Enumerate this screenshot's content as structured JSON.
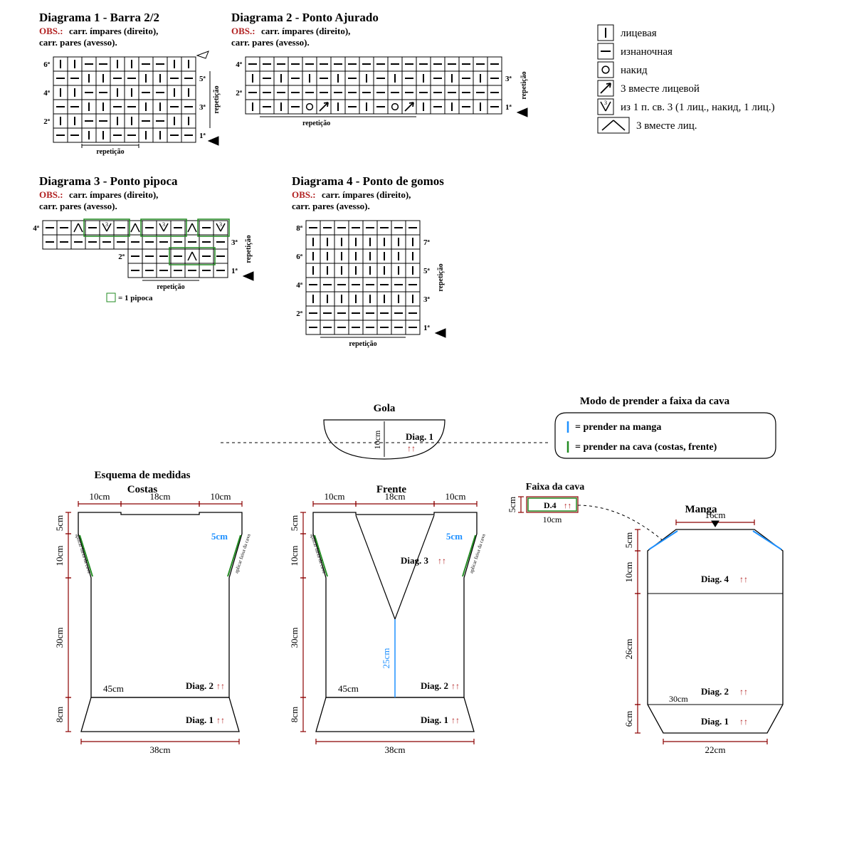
{
  "colors": {
    "black": "#000000",
    "red": "#b22222",
    "blue": "#1e90ff",
    "green": "#228b22",
    "darkred_measure": "#8b0000",
    "grid_stroke": "#000000",
    "bg": "#ffffff"
  },
  "fonts": {
    "title_size": 17,
    "obs_size": 13,
    "legend_size": 15,
    "measure_size": 14,
    "small_size": 11,
    "rep_size": 10
  },
  "diagram1": {
    "title": "Diagrama 1 - Barra 2/2",
    "obs_label": "OBS.:",
    "obs_text": "carr. ímpares (direito),",
    "obs_text2": "carr. pares (avesso).",
    "repeticao": "repetição",
    "cols": 10,
    "rows": 6,
    "row_labels_left": [
      "6ª",
      "4ª",
      "2ª"
    ],
    "row_labels_right": [
      "5ª",
      "3ª",
      "1ª"
    ],
    "cell": 20,
    "patternA": [
      "|",
      "|",
      "-",
      "-",
      "|",
      "|",
      "-",
      "-",
      "|",
      "|"
    ],
    "patternB": [
      "-",
      "-",
      "|",
      "|",
      "-",
      "-",
      "|",
      "|",
      "-",
      "-"
    ]
  },
  "diagram2": {
    "title": "Diagrama 2 - Ponto Ajurado",
    "obs_label": "OBS.:",
    "obs_text": "carr. ímpares (direito),",
    "obs_text2": "carr. pares (avesso).",
    "repeticao": "repetição",
    "cols": 18,
    "rows": 4,
    "row_labels_left": [
      "4ª",
      "2ª"
    ],
    "row_labels_right": [
      "3ª",
      "1ª"
    ],
    "cell": 20,
    "rows_data": [
      [
        "-",
        "-",
        "-",
        "-",
        "-",
        "-",
        "-",
        "-",
        "-",
        "-",
        "-",
        "-",
        "-",
        "-",
        "-",
        "-",
        "-",
        "-"
      ],
      [
        "|",
        "-",
        "|",
        "-",
        "|",
        "-",
        "|",
        "-",
        "|",
        "-",
        "|",
        "-",
        "|",
        "-",
        "|",
        "-",
        "|",
        "-"
      ],
      [
        "-",
        "-",
        "-",
        "-",
        "-",
        "-",
        "-",
        "-",
        "-",
        "-",
        "-",
        "-",
        "-",
        "-",
        "-",
        "-",
        "-",
        "-"
      ],
      [
        "|",
        "-",
        "|",
        "-",
        "o",
        "↗",
        "|",
        "-",
        "|",
        "-",
        "o",
        "↗",
        "|",
        "-",
        "|",
        "-",
        "|",
        "-"
      ]
    ]
  },
  "diagram3": {
    "title": "Diagrama 3 - Ponto pipoca",
    "obs_label": "OBS.:",
    "obs_text": "carr. ímpares (direito),",
    "obs_text2": "carr. pares (avesso).",
    "repeticao": "repetição",
    "pip_label": "= 1 pipoca",
    "row_labels_left": [
      "4ª",
      "2ª"
    ],
    "row_labels_right": [
      "3ª",
      "1ª"
    ],
    "cell": 20,
    "row4": [
      "-",
      "-",
      "A",
      "-",
      "V",
      "-",
      "A",
      "-",
      "V",
      "-",
      "A",
      "-",
      "V"
    ],
    "row3": [
      "-",
      "-",
      "-",
      "-",
      "-",
      "-",
      "-",
      "-",
      "-",
      "-",
      "-",
      "-",
      "-"
    ],
    "row2": [
      "-",
      "-",
      "-",
      "-",
      "A",
      "-",
      "-"
    ],
    "row1": [
      "-",
      "-",
      "-",
      "-",
      "-",
      "-",
      "-"
    ]
  },
  "diagram4": {
    "title": "Diagrama 4 - Ponto de gomos",
    "obs_label": "OBS.:",
    "obs_text": "carr. ímpares (direito),",
    "obs_text2": "carr. pares (avesso).",
    "repeticao": "repetição",
    "cols": 8,
    "rows": 8,
    "row_labels_left": [
      "8ª",
      "6ª",
      "4ª",
      "2ª"
    ],
    "row_labels_right": [
      "7ª",
      "5ª",
      "3ª",
      "1ª"
    ],
    "cell": 20,
    "rows_data": [
      [
        "-",
        "-",
        "-",
        "-",
        "-",
        "-",
        "-",
        "-"
      ],
      [
        "|",
        "|",
        "|",
        "|",
        "|",
        "|",
        "|",
        "|"
      ],
      [
        "|",
        "|",
        "|",
        "|",
        "|",
        "|",
        "|",
        "|"
      ],
      [
        "|",
        "|",
        "|",
        "|",
        "|",
        "|",
        "|",
        "|"
      ],
      [
        "-",
        "-",
        "-",
        "-",
        "-",
        "-",
        "-",
        "-"
      ],
      [
        "|",
        "|",
        "|",
        "|",
        "|",
        "|",
        "|",
        "|"
      ],
      [
        "-",
        "-",
        "-",
        "-",
        "-",
        "-",
        "-",
        "-"
      ],
      [
        "-",
        "-",
        "-",
        "-",
        "-",
        "-",
        "-",
        "-"
      ]
    ]
  },
  "legend": {
    "items": [
      {
        "sym": "|",
        "text": "лицевая"
      },
      {
        "sym": "-",
        "text": "изнаночная"
      },
      {
        "sym": "o",
        "text": "накид"
      },
      {
        "sym": "↗",
        "text": "3 вместе лицевой"
      },
      {
        "sym": "V",
        "text": "из 1 п. св. 3 (1 лиц., накид, 1 лиц.)"
      },
      {
        "sym": "A",
        "text": "3 вместе лиц.",
        "wide": true
      }
    ]
  },
  "gola": {
    "title": "Gola",
    "height": "10cm",
    "diag": "Diag. 1",
    "modo_title": "Modo de prender a faixa da cava",
    "blue_text": "= prender na manga",
    "green_text": "= prender na cava (costas, frente)"
  },
  "schematics": {
    "header": "Esquema de medidas",
    "costas": {
      "title": "Costas",
      "top_left": "10cm",
      "top_mid": "18cm",
      "top_right": "10cm",
      "left_5": "5cm",
      "left_10": "10cm",
      "left_30": "30cm",
      "left_8": "8cm",
      "inner_5": "5cm",
      "inner_45": "45cm",
      "bottom": "38cm",
      "diag2": "Diag. 2 ↑↑",
      "diag1": "Diag. 1 ↑↑",
      "aplicar": "aplicar faixa da cava"
    },
    "frente": {
      "title": "Frente",
      "top_left": "10cm",
      "top_mid": "18cm",
      "top_right": "10cm",
      "left_5": "5cm",
      "left_10": "10cm",
      "left_30": "30cm",
      "left_8": "8cm",
      "inner_5": "5cm",
      "inner_45": "45cm",
      "inner_25": "25cm",
      "bottom": "38cm",
      "diag3": "Diag. 3 ↑↑",
      "diag2": "Diag. 2 ↑↑",
      "diag1": "Diag. 1 ↑↑",
      "aplicar": "aplicar faixa da cava"
    },
    "faixa": {
      "title": "Faixa da cava",
      "d4": "D.4 ↑↑",
      "h": "5cm",
      "w": "10cm"
    },
    "manga": {
      "title": "Manga",
      "top": "16cm",
      "left_5": "5cm",
      "left_10": "10cm",
      "left_26": "26cm",
      "left_6": "6cm",
      "inner_30": "30cm",
      "bottom": "22cm",
      "diag4": "Diag. 4 ↑↑",
      "diag2": "Diag. 2 ↑↑",
      "diag1": "Diag. 1 ↑↑"
    }
  }
}
